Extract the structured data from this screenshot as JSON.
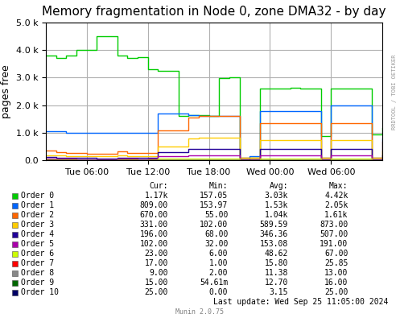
{
  "chart_data": {
    "type": "step",
    "title": "Memory fragmentation in Node 0, zone DMA32 - by day",
    "y_label": "pages free",
    "categories": [
      null,
      null,
      null,
      null,
      "Tue 06:00",
      null,
      null,
      null,
      null,
      null,
      "Tue 12:00",
      null,
      null,
      null,
      null,
      null,
      "Tue 18:00",
      null,
      null,
      null,
      null,
      null,
      "Wed 00:00",
      null,
      null,
      null,
      null,
      null,
      "Wed 06:00",
      null,
      null,
      null,
      null,
      null
    ],
    "ylim": [
      0,
      5000
    ],
    "yticks": [
      {
        "value": 0,
        "label": "0.0"
      },
      {
        "value": 1000,
        "label": "1.0 k"
      },
      {
        "value": 2000,
        "label": "2.0 k"
      },
      {
        "value": 3000,
        "label": "3.0 k"
      },
      {
        "value": 4000,
        "label": "4.0 k"
      },
      {
        "value": 5000,
        "label": "5.0 k"
      }
    ],
    "grid": true,
    "table_columns": [
      "Cur:",
      "Min:",
      "Avg:",
      "Max:"
    ],
    "watermark": "RRDTOOL / TOBI OETIKER",
    "last_update": "Last update: Wed Sep 25 11:05:00 2024",
    "footer": "Munin 2.0.75",
    "series": [
      {
        "name": "Order 0",
        "color": "#00cc00",
        "stats": [
          "1.17k",
          "157.05",
          "3.03k",
          "4.42k"
        ],
        "values": [
          3800,
          3700,
          3800,
          4000,
          4000,
          4500,
          4500,
          3800,
          3700,
          3750,
          3300,
          3250,
          3250,
          1600,
          1650,
          1650,
          1600,
          2980,
          3000,
          50,
          100,
          2600,
          2600,
          2600,
          2620,
          2600,
          2600,
          900,
          2600,
          2600,
          2600,
          2600,
          950,
          1170
        ]
      },
      {
        "name": "Order 1",
        "color": "#0066ff",
        "stats": [
          "809.00",
          "153.97",
          "1.53k",
          "2.05k"
        ],
        "values": [
          1050,
          1050,
          1000,
          1000,
          1000,
          1000,
          1000,
          1000,
          1000,
          1000,
          1000,
          1700,
          1700,
          1700,
          1650,
          1600,
          1600,
          1600,
          1600,
          100,
          150,
          1800,
          1800,
          1800,
          1800,
          1800,
          1800,
          100,
          2000,
          2000,
          2000,
          2000,
          100,
          809
        ]
      },
      {
        "name": "Order 2",
        "color": "#ff6600",
        "stats": [
          "670.00",
          "55.00",
          "1.04k",
          "1.61k"
        ],
        "values": [
          350,
          300,
          280,
          280,
          260,
          250,
          250,
          320,
          280,
          270,
          280,
          1100,
          1100,
          1100,
          1550,
          1600,
          1600,
          1600,
          1600,
          100,
          100,
          1350,
          1350,
          1350,
          1350,
          1350,
          1350,
          100,
          1350,
          1350,
          1350,
          1350,
          100,
          670
        ]
      },
      {
        "name": "Order 3",
        "color": "#ffcc00",
        "stats": [
          "331.00",
          "102.00",
          "589.59",
          "873.00"
        ],
        "values": [
          200,
          180,
          170,
          160,
          160,
          150,
          150,
          180,
          160,
          150,
          160,
          520,
          520,
          520,
          800,
          830,
          830,
          840,
          840,
          100,
          100,
          750,
          750,
          750,
          750,
          750,
          750,
          100,
          750,
          750,
          750,
          750,
          100,
          331
        ]
      },
      {
        "name": "Order 4",
        "color": "#220099",
        "stats": [
          "196.00",
          "68.00",
          "346.36",
          "507.00"
        ],
        "values": [
          120,
          110,
          100,
          90,
          90,
          85,
          85,
          100,
          95,
          90,
          95,
          310,
          310,
          310,
          420,
          430,
          430,
          430,
          430,
          50,
          50,
          420,
          420,
          420,
          420,
          420,
          420,
          50,
          420,
          420,
          420,
          420,
          50,
          196
        ]
      },
      {
        "name": "Order 5",
        "color": "#aa00aa",
        "stats": [
          "102.00",
          "32.00",
          "153.08",
          "191.00"
        ],
        "values": [
          70,
          65,
          60,
          55,
          55,
          50,
          50,
          60,
          58,
          55,
          58,
          160,
          160,
          160,
          185,
          188,
          188,
          190,
          190,
          30,
          30,
          185,
          185,
          185,
          185,
          185,
          185,
          30,
          185,
          185,
          185,
          185,
          30,
          102
        ]
      },
      {
        "name": "Order 6",
        "color": "#ccff00",
        "stats": [
          "23.00",
          "6.00",
          "48.62",
          "67.00"
        ],
        "values": [
          35,
          32,
          30,
          28,
          28,
          25,
          25,
          30,
          29,
          27,
          29,
          65,
          65,
          65,
          67,
          67,
          67,
          67,
          67,
          10,
          10,
          65,
          65,
          65,
          65,
          65,
          65,
          10,
          65,
          65,
          65,
          65,
          10,
          23
        ]
      },
      {
        "name": "Order 7",
        "color": "#ff0000",
        "stats": [
          "17.00",
          "1.00",
          "15.80",
          "25.85"
        ],
        "values": [
          18,
          16,
          15,
          14,
          14,
          13,
          13,
          15,
          14,
          14,
          14,
          25,
          25,
          25,
          25,
          25,
          25,
          25,
          25,
          5,
          5,
          24,
          24,
          24,
          24,
          24,
          24,
          5,
          24,
          24,
          24,
          24,
          5,
          17
        ]
      },
      {
        "name": "Order 8",
        "color": "#888888",
        "stats": [
          "9.00",
          "2.00",
          "11.38",
          "13.00"
        ],
        "values": [
          10,
          9,
          9,
          8,
          8,
          8,
          8,
          9,
          8,
          8,
          8,
          13,
          13,
          13,
          13,
          13,
          13,
          13,
          13,
          3,
          3,
          13,
          13,
          13,
          13,
          13,
          13,
          3,
          13,
          13,
          13,
          13,
          3,
          9
        ]
      },
      {
        "name": "Order 9",
        "color": "#006600",
        "stats": [
          "15.00",
          "54.61m",
          "12.70",
          "16.00"
        ],
        "values": [
          12,
          11,
          10,
          10,
          10,
          10,
          10,
          11,
          10,
          10,
          10,
          15,
          15,
          15,
          15,
          15,
          15,
          15,
          15,
          2,
          2,
          14,
          14,
          14,
          14,
          14,
          14,
          2,
          14,
          14,
          14,
          14,
          2,
          15
        ]
      },
      {
        "name": "Order 10",
        "color": "#000066",
        "stats": [
          "25.00",
          "0.00",
          "3.15",
          "25.00"
        ],
        "values": [
          20,
          18,
          17,
          16,
          16,
          15,
          15,
          17,
          16,
          16,
          16,
          24,
          24,
          24,
          25,
          25,
          25,
          25,
          25,
          2,
          2,
          22,
          22,
          22,
          22,
          22,
          22,
          2,
          22,
          22,
          22,
          22,
          2,
          25
        ]
      }
    ]
  }
}
